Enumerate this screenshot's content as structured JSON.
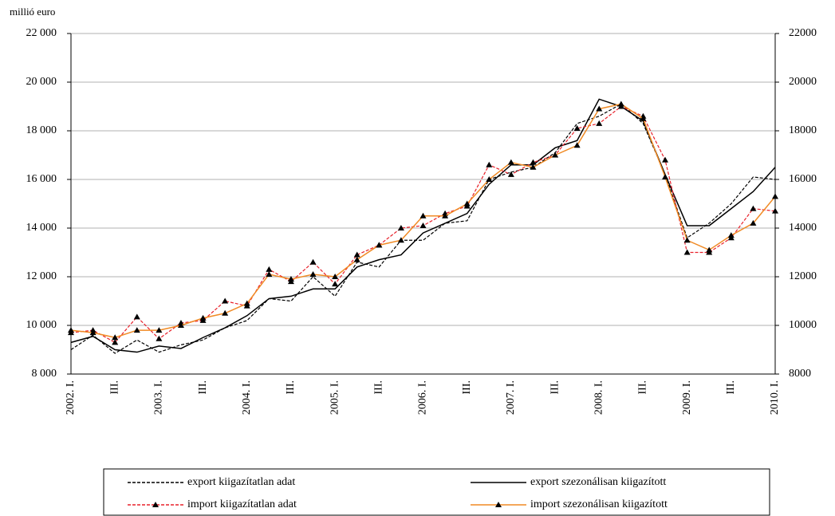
{
  "chart_data": {
    "type": "line",
    "y_label": "millió euro",
    "categories": [
      "2002. I.",
      null,
      "III.",
      null,
      "2003. I.",
      null,
      "III.",
      null,
      "2004. I.",
      null,
      "III.",
      null,
      "2005. I.",
      null,
      "III.",
      null,
      "2006. I.",
      null,
      "III.",
      null,
      "2007. I.",
      null,
      "III.",
      null,
      "2008. I.",
      null,
      "III.",
      null,
      "2009. I.",
      null,
      "III.",
      null,
      "2010. I."
    ],
    "ylim": [
      8000,
      22000
    ],
    "yticks": [
      {
        "value": 8000,
        "label": "8 000"
      },
      {
        "value": 10000,
        "label": "10 000"
      },
      {
        "value": 12000,
        "label": "12 000"
      },
      {
        "value": 14000,
        "label": "14 000"
      },
      {
        "value": 16000,
        "label": "16 000"
      },
      {
        "value": 18000,
        "label": "18 000"
      },
      {
        "value": 20000,
        "label": "20 000"
      },
      {
        "value": 22000,
        "label": "22 000"
      }
    ],
    "y2lim": [
      8000,
      22000
    ],
    "y2ticks": [
      8000,
      10000,
      12000,
      14000,
      16000,
      18000,
      20000,
      22000
    ],
    "grid": true,
    "legend": "bottom",
    "series": [
      {
        "name": "export kiigazítatlan adat",
        "color": "#000000",
        "dash": true,
        "marker": null,
        "values": [
          9000,
          9600,
          8850,
          9400,
          8900,
          9200,
          9400,
          9900,
          10200,
          11100,
          11000,
          12000,
          11200,
          12600,
          12400,
          13500,
          13500,
          14200,
          14300,
          16000,
          16300,
          16500,
          17100,
          18300,
          18600,
          19100,
          18300,
          16200,
          13600,
          14200,
          15000,
          16100,
          16000
        ]
      },
      {
        "name": "export szezonálisan kiigazított",
        "color": "#000000",
        "dash": false,
        "marker": null,
        "values": [
          9300,
          9550,
          9000,
          8900,
          9150,
          9050,
          9500,
          9900,
          10400,
          11100,
          11200,
          11500,
          11500,
          12400,
          12700,
          12900,
          13800,
          14200,
          14600,
          15800,
          16600,
          16600,
          17300,
          17600,
          19300,
          19000,
          18400,
          16200,
          14100,
          14100,
          14800,
          15500,
          16500
        ]
      },
      {
        "name": "import kiigazítatlan adat",
        "color": "#e8202a",
        "dash": true,
        "marker": "triangle",
        "values": [
          9700,
          9800,
          9300,
          10350,
          9450,
          10100,
          10200,
          11000,
          10800,
          12300,
          11800,
          12600,
          11700,
          12900,
          13300,
          14000,
          14100,
          14600,
          14900,
          16600,
          16200,
          16700,
          17000,
          18100,
          18300,
          19000,
          18600,
          16800,
          13000,
          13000,
          13600,
          14800,
          14700
        ]
      },
      {
        "name": "import szezonálisan kiigazított",
        "color": "#f08a24",
        "dash": false,
        "marker": "triangle",
        "values": [
          9800,
          9700,
          9500,
          9800,
          9800,
          10000,
          10300,
          10500,
          10900,
          12100,
          11900,
          12100,
          12000,
          12700,
          13300,
          13500,
          14500,
          14500,
          15000,
          16000,
          16700,
          16500,
          17000,
          17400,
          18900,
          19100,
          18500,
          16100,
          13500,
          13100,
          13700,
          14200,
          15300
        ]
      }
    ]
  }
}
